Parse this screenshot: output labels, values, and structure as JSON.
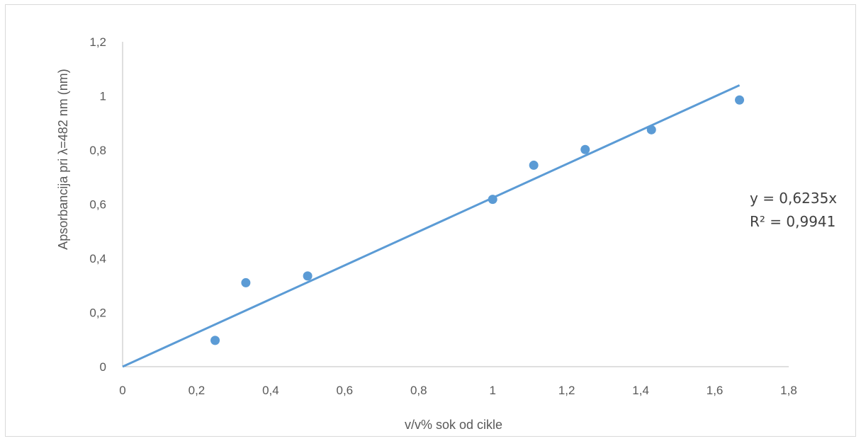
{
  "chart_data": {
    "type": "scatter",
    "xlabel": "v/v% sok od cikle",
    "ylabel": "Apsorbancija pri λ=482 nm (nm)",
    "xlim": [
      0,
      1.8
    ],
    "ylim": [
      0,
      1.2
    ],
    "x_ticks": [
      0,
      0.2,
      0.4,
      0.6,
      0.8,
      1,
      1.2,
      1.4,
      1.6,
      1.8
    ],
    "x_tick_labels": [
      "0",
      "0,2",
      "0,4",
      "0,6",
      "0,8",
      "1",
      "1,2",
      "1,4",
      "1,6",
      "1,8"
    ],
    "y_ticks": [
      0,
      0.2,
      0.4,
      0.6,
      0.8,
      1,
      1.2
    ],
    "y_tick_labels": [
      "0",
      "0,2",
      "0,4",
      "0,6",
      "0,8",
      "1",
      "1,2"
    ],
    "grid": false,
    "series": [
      {
        "x": [
          0.25,
          0.333,
          0.5,
          1.0,
          1.111,
          1.25,
          1.429,
          1.667
        ],
        "y": [
          0.097,
          0.31,
          0.335,
          0.618,
          0.744,
          0.802,
          0.875,
          0.985
        ],
        "color": "#5b9bd5"
      }
    ],
    "trendline": {
      "type": "linear",
      "slope": 0.6235,
      "intercept": 0,
      "x_range": [
        0,
        1.667
      ],
      "color": "#5b9bd5",
      "equation_text": "y = 0,6235x",
      "r2_text": "R² = 0,9941"
    }
  }
}
